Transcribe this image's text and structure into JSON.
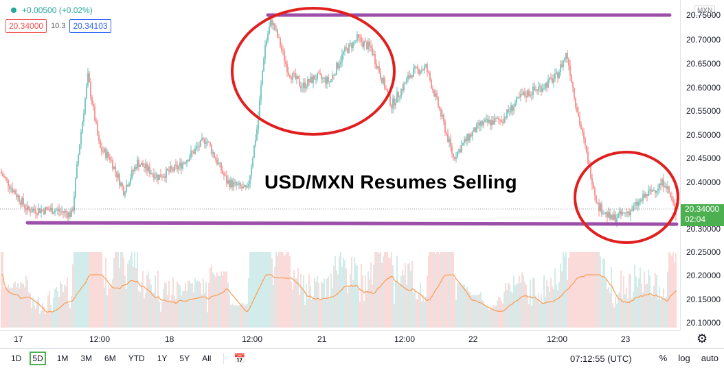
{
  "legend": {
    "change": "+0.00500 (+0.02%)",
    "sell_price": "20.34000",
    "spread": "10.3",
    "buy_price": "20.34103"
  },
  "headline": "USD/MXN Resumes Selling",
  "currency_badge": "MXN",
  "current_price": {
    "price": "20.34000",
    "countdown": "02:04"
  },
  "price_axis": [
    "20.75000",
    "20.70000",
    "20.65000",
    "20.60000",
    "20.55000",
    "20.50000",
    "20.45000",
    "20.40000",
    "20.30000",
    "20.25000",
    "20.20000",
    "20.15000",
    "20.10000"
  ],
  "time_axis": [
    "17",
    "12:00",
    "18",
    "12:00",
    "21",
    "12:00",
    "22",
    "12:00",
    "23"
  ],
  "timeframes": [
    "1D",
    "5D",
    "1M",
    "3M",
    "6M",
    "YTD",
    "1Y",
    "5Y",
    "All"
  ],
  "active_timeframe": "5D",
  "clock": "07:12:55 (UTC)",
  "right_tools": [
    "%",
    "log",
    "auto"
  ],
  "colors": {
    "up": "#26a69a",
    "down": "#ef5350",
    "annotation_line": "#9c4fa8",
    "annotation_circle": "#e0201f",
    "volume_ma": "#f7a15c"
  },
  "chart_data": {
    "type": "candlestick",
    "ylim": [
      20.08,
      20.78
    ],
    "price_waypoints": [
      [
        0,
        20.42
      ],
      [
        40,
        20.34
      ],
      [
        80,
        20.34
      ],
      [
        105,
        20.33
      ],
      [
        115,
        20.47
      ],
      [
        128,
        20.62
      ],
      [
        145,
        20.47
      ],
      [
        160,
        20.45
      ],
      [
        180,
        20.38
      ],
      [
        200,
        20.44
      ],
      [
        230,
        20.41
      ],
      [
        260,
        20.43
      ],
      [
        300,
        20.49
      ],
      [
        330,
        20.4
      ],
      [
        360,
        20.38
      ],
      [
        375,
        20.52
      ],
      [
        385,
        20.68
      ],
      [
        395,
        20.74
      ],
      [
        405,
        20.7
      ],
      [
        420,
        20.63
      ],
      [
        440,
        20.6
      ],
      [
        460,
        20.62
      ],
      [
        480,
        20.61
      ],
      [
        500,
        20.67
      ],
      [
        520,
        20.7
      ],
      [
        540,
        20.68
      ],
      [
        555,
        20.62
      ],
      [
        570,
        20.56
      ],
      [
        600,
        20.63
      ],
      [
        620,
        20.64
      ],
      [
        640,
        20.55
      ],
      [
        660,
        20.45
      ],
      [
        680,
        20.49
      ],
      [
        700,
        20.52
      ],
      [
        730,
        20.53
      ],
      [
        760,
        20.58
      ],
      [
        790,
        20.6
      ],
      [
        810,
        20.62
      ],
      [
        825,
        20.67
      ],
      [
        840,
        20.55
      ],
      [
        855,
        20.45
      ],
      [
        870,
        20.35
      ],
      [
        890,
        20.32
      ],
      [
        920,
        20.34
      ],
      [
        940,
        20.37
      ],
      [
        968,
        20.4
      ],
      [
        985,
        20.33
      ]
    ],
    "annotations": {
      "resistance": {
        "from_x": 390,
        "to_x": 975,
        "price": 20.75
      },
      "support": {
        "from_x": 40,
        "to_x": 985,
        "price": 20.31
      },
      "circle_top": {
        "cx": 456,
        "cy": 104,
        "rx": 118,
        "ry": 92
      },
      "circle_bottom": {
        "cx": 912,
        "cy": 288,
        "rx": 75,
        "ry": 66
      }
    }
  }
}
